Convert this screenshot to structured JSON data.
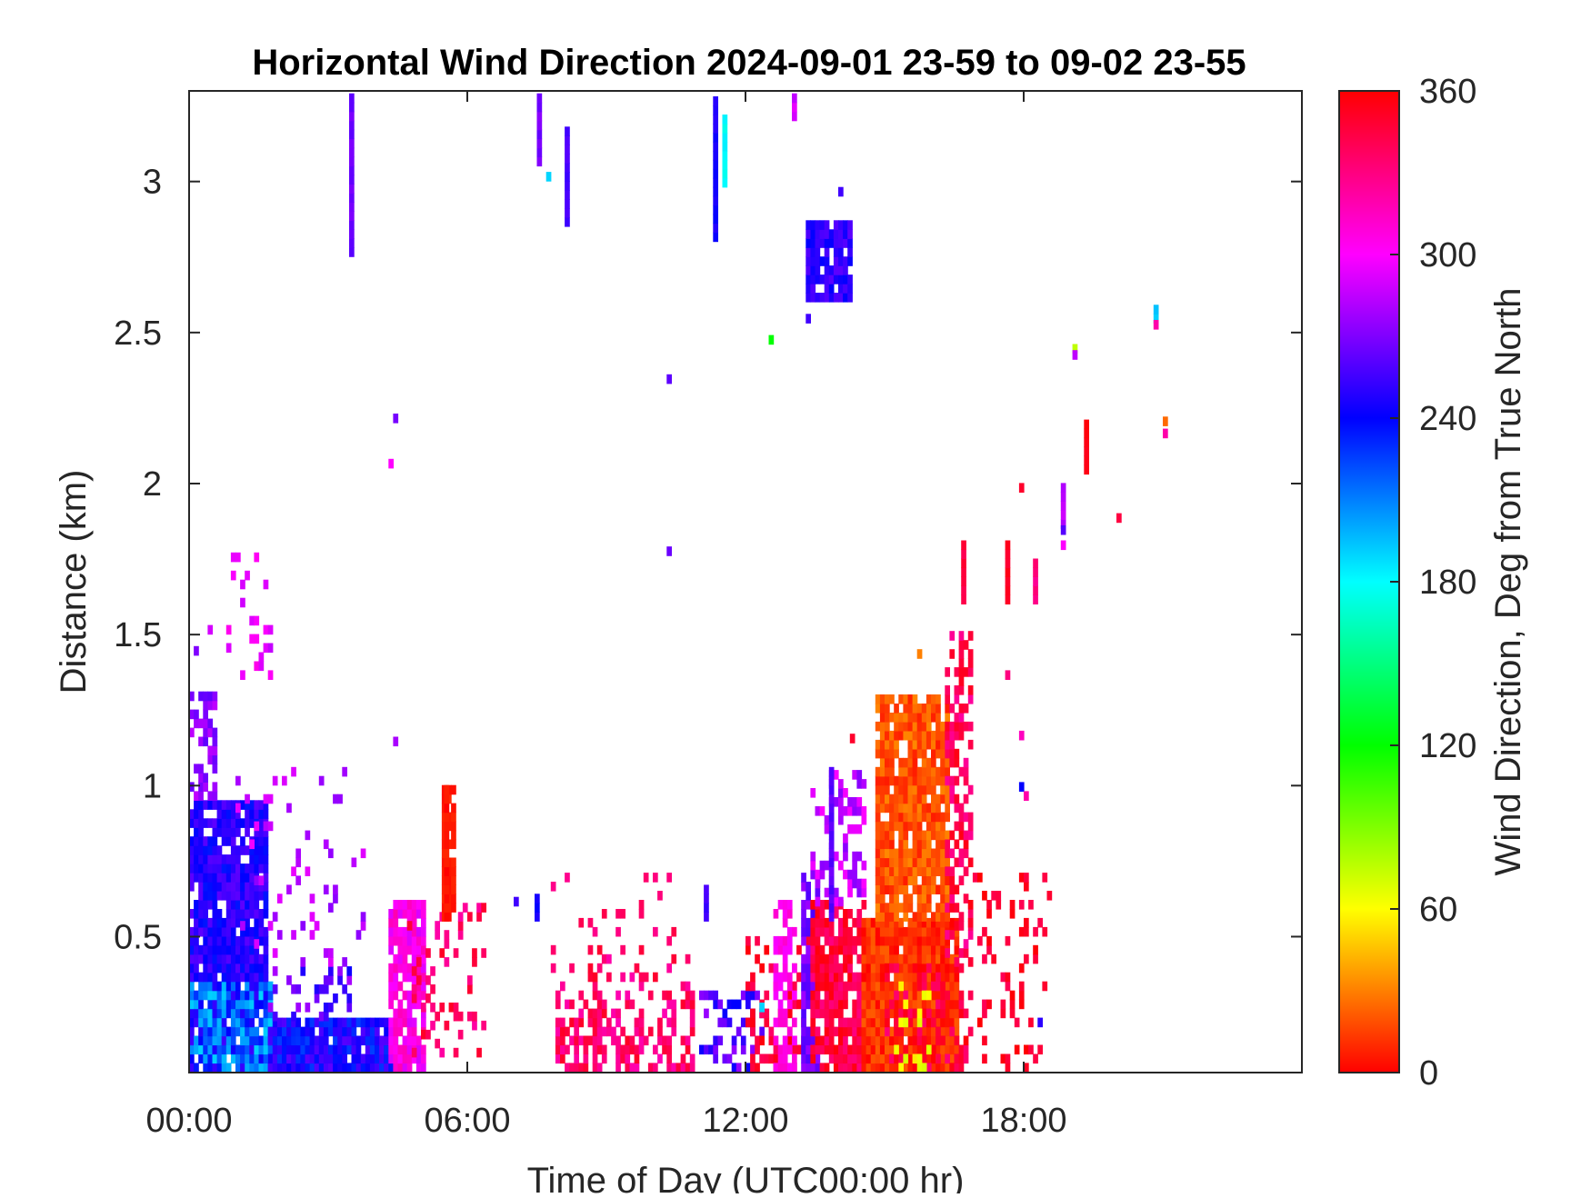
{
  "chart_data": {
    "type": "heatmap",
    "title": "Horizontal Wind Direction 2024-09-01 23-59 to 09-02 23-55",
    "xlabel": "Time of Day (UTC00:00 hr)",
    "ylabel": "Distance (km)",
    "xlim_hours": [
      0,
      24
    ],
    "ylim_km": [
      0.05,
      3.3
    ],
    "x_ticks": [
      {
        "value": 0,
        "label": "00:00"
      },
      {
        "value": 6,
        "label": "06:00"
      },
      {
        "value": 12,
        "label": "12:00"
      },
      {
        "value": 18,
        "label": "18:00"
      }
    ],
    "y_ticks": [
      {
        "value": 0.5,
        "label": "0.5"
      },
      {
        "value": 1,
        "label": "1"
      },
      {
        "value": 1.5,
        "label": "1.5"
      },
      {
        "value": 2,
        "label": "2"
      },
      {
        "value": 2.5,
        "label": "2.5"
      },
      {
        "value": 3,
        "label": "3"
      }
    ],
    "colorbar": {
      "label": "Wind Direction, Deg from True North",
      "range": [
        0,
        360
      ],
      "ticks": [
        {
          "value": 0,
          "label": "0"
        },
        {
          "value": 60,
          "label": "60"
        },
        {
          "value": 120,
          "label": "120"
        },
        {
          "value": 180,
          "label": "180"
        },
        {
          "value": 240,
          "label": "240"
        },
        {
          "value": 300,
          "label": "300"
        },
        {
          "value": 360,
          "label": "360"
        }
      ],
      "colormap": "hsv"
    },
    "grid": false,
    "regions": [
      {
        "t": [
          0.0,
          1.8
        ],
        "d": [
          0.05,
          0.35
        ],
        "dir": [
          190,
          255
        ],
        "density": 0.95
      },
      {
        "t": [
          0.0,
          1.7
        ],
        "d": [
          0.35,
          0.95
        ],
        "dir": [
          235,
          262
        ],
        "density": 0.9
      },
      {
        "t": [
          0.0,
          0.6
        ],
        "d": [
          0.95,
          1.3
        ],
        "dir": [
          262,
          285
        ],
        "density": 0.45
      },
      {
        "t": [
          1.7,
          4.5
        ],
        "d": [
          0.05,
          0.22
        ],
        "dir": [
          225,
          262
        ],
        "density": 0.9
      },
      {
        "t": [
          1.7,
          3.5
        ],
        "d": [
          0.22,
          0.4
        ],
        "dir": [
          240,
          282
        ],
        "density": 0.35
      },
      {
        "t": [
          1.0,
          3.8
        ],
        "d": [
          0.4,
          1.05
        ],
        "dir": [
          272,
          298
        ],
        "density": 0.1
      },
      {
        "t": [
          0.8,
          1.8
        ],
        "d": [
          1.35,
          1.75
        ],
        "dir": [
          285,
          305
        ],
        "density": 0.15
      },
      {
        "t": [
          4.3,
          5.0
        ],
        "d": [
          0.05,
          0.6
        ],
        "dir": [
          290,
          320
        ],
        "density": 0.85
      },
      {
        "t": [
          4.7,
          6.3
        ],
        "d": [
          0.1,
          0.6
        ],
        "dir": [
          320,
          352
        ],
        "density": 0.2
      },
      {
        "t": [
          5.45,
          5.7
        ],
        "d": [
          0.55,
          1.0
        ],
        "dir": [
          2,
          10
        ],
        "density": 0.9
      },
      {
        "t": [
          7.9,
          10.8
        ],
        "d": [
          0.05,
          0.32
        ],
        "dir": [
          318,
          352
        ],
        "density": 0.5
      },
      {
        "t": [
          7.8,
          10.8
        ],
        "d": [
          0.32,
          0.7
        ],
        "dir": [
          320,
          352
        ],
        "density": 0.1
      },
      {
        "t": [
          11.0,
          12.3
        ],
        "d": [
          0.05,
          0.32
        ],
        "dir": [
          240,
          278
        ],
        "density": 0.4
      },
      {
        "t": [
          12.0,
          13.4
        ],
        "d": [
          0.05,
          0.5
        ],
        "dir": [
          335,
          358
        ],
        "density": 0.3
      },
      {
        "t": [
          12.6,
          13.0
        ],
        "d": [
          0.05,
          0.6
        ],
        "dir": [
          298,
          312
        ],
        "density": 0.6
      },
      {
        "t": [
          13.2,
          13.5
        ],
        "d": [
          0.05,
          0.7
        ],
        "dir": [
          258,
          278
        ],
        "density": 0.8
      },
      {
        "t": [
          13.4,
          14.7
        ],
        "d": [
          0.05,
          0.6
        ],
        "dir": [
          330,
          358
        ],
        "density": 0.75
      },
      {
        "t": [
          13.4,
          14.5
        ],
        "d": [
          0.6,
          1.05
        ],
        "dir": [
          272,
          300
        ],
        "density": 0.35
      },
      {
        "t": [
          14.5,
          16.6
        ],
        "d": [
          0.05,
          0.55
        ],
        "dir": [
          0,
          22
        ],
        "density": 0.95
      },
      {
        "t": [
          14.8,
          16.4
        ],
        "d": [
          0.55,
          1.3
        ],
        "dir": [
          6,
          32
        ],
        "density": 0.85
      },
      {
        "t": [
          15.0,
          16.8
        ],
        "d": [
          0.05,
          0.4
        ],
        "dir": [
          332,
          358
        ],
        "density": 0.35
      },
      {
        "t": [
          15.2,
          15.9
        ],
        "d": [
          0.05,
          0.35
        ],
        "dir": [
          55,
          70
        ],
        "density": 0.12
      },
      {
        "t": [
          16.3,
          16.9
        ],
        "d": [
          0.4,
          1.5
        ],
        "dir": [
          322,
          356
        ],
        "density": 0.5
      },
      {
        "t": [
          16.8,
          18.6
        ],
        "d": [
          0.05,
          0.7
        ],
        "dir": [
          340,
          360
        ],
        "density": 0.15
      },
      {
        "t": [
          13.3,
          14.2
        ],
        "d": [
          2.6,
          2.85
        ],
        "dir": [
          240,
          262
        ],
        "density": 0.9
      }
    ],
    "streaks": [
      {
        "t": 3.45,
        "d": [
          2.75,
          3.28
        ],
        "dir": 265
      },
      {
        "t": 7.5,
        "d": [
          3.05,
          3.28
        ],
        "dir": 268
      },
      {
        "t": 8.1,
        "d": [
          2.85,
          3.15
        ],
        "dir": 258
      },
      {
        "t": 11.3,
        "d": [
          2.8,
          3.25
        ],
        "dir": 245
      },
      {
        "t": 11.5,
        "d": [
          2.98,
          3.2
        ],
        "dir": 180
      },
      {
        "t": 13.0,
        "d": [
          3.2,
          3.28
        ],
        "dir": 290
      },
      {
        "t": 16.65,
        "d": [
          1.6,
          1.8
        ],
        "dir": 345
      },
      {
        "t": 17.6,
        "d": [
          1.6,
          1.8
        ],
        "dir": 350
      },
      {
        "t": 18.2,
        "d": [
          1.6,
          1.75
        ],
        "dir": 330
      },
      {
        "t": 18.8,
        "d": [
          1.85,
          2.0
        ],
        "dir": 285
      },
      {
        "t": 19.3,
        "d": [
          2.03,
          2.2
        ],
        "dir": 355
      },
      {
        "t": 20.8,
        "d": [
          2.53,
          2.58
        ],
        "dir": 190
      },
      {
        "t": 5.5,
        "d": [
          0.55,
          1.0
        ],
        "dir": 4
      },
      {
        "t": 7.45,
        "d": [
          0.55,
          0.62
        ],
        "dir": 245
      },
      {
        "t": 11.1,
        "d": [
          0.55,
          0.65
        ],
        "dir": 255
      },
      {
        "t": 13.8,
        "d": [
          0.55,
          1.05
        ],
        "dir": 262
      }
    ],
    "points": [
      {
        "t": 4.4,
        "d": 2.2,
        "dir": 268
      },
      {
        "t": 4.3,
        "d": 2.05,
        "dir": 300
      },
      {
        "t": 4.4,
        "d": 1.13,
        "dir": 280
      },
      {
        "t": 10.3,
        "d": 2.33,
        "dir": 262
      },
      {
        "t": 10.3,
        "d": 1.76,
        "dir": 265
      },
      {
        "t": 13.3,
        "d": 2.53,
        "dir": 255
      },
      {
        "t": 12.5,
        "d": 2.46,
        "dir": 120
      },
      {
        "t": 7.7,
        "d": 3.0,
        "dir": 190
      },
      {
        "t": 19.05,
        "d": 2.43,
        "dir": 75
      },
      {
        "t": 19.05,
        "d": 2.41,
        "dir": 285
      },
      {
        "t": 20.8,
        "d": 2.51,
        "dir": 320
      },
      {
        "t": 21.0,
        "d": 2.19,
        "dir": 25
      },
      {
        "t": 21.0,
        "d": 2.15,
        "dir": 320
      },
      {
        "t": 20.0,
        "d": 1.87,
        "dir": 345
      },
      {
        "t": 18.8,
        "d": 1.83,
        "dir": 260
      },
      {
        "t": 18.8,
        "d": 1.78,
        "dir": 300
      },
      {
        "t": 17.9,
        "d": 1.97,
        "dir": 350
      },
      {
        "t": 17.6,
        "d": 1.35,
        "dir": 330
      },
      {
        "t": 17.9,
        "d": 1.15,
        "dir": 315
      },
      {
        "t": 17.9,
        "d": 0.98,
        "dir": 240
      },
      {
        "t": 18.0,
        "d": 0.95,
        "dir": 320
      },
      {
        "t": 0.1,
        "d": 1.43,
        "dir": 270
      },
      {
        "t": 0.4,
        "d": 1.5,
        "dir": 290
      },
      {
        "t": 1.8,
        "d": 1.0,
        "dir": 290
      },
      {
        "t": 2.2,
        "d": 1.03,
        "dir": 292
      },
      {
        "t": 14.0,
        "d": 2.95,
        "dir": 255
      },
      {
        "t": 18.3,
        "d": 0.2,
        "dir": 250
      },
      {
        "t": 14.25,
        "d": 1.14,
        "dir": 350
      },
      {
        "t": 7.0,
        "d": 0.6,
        "dir": 255
      },
      {
        "t": 12.3,
        "d": 0.25,
        "dir": 190
      },
      {
        "t": 15.7,
        "d": 1.42,
        "dir": 30
      }
    ]
  }
}
